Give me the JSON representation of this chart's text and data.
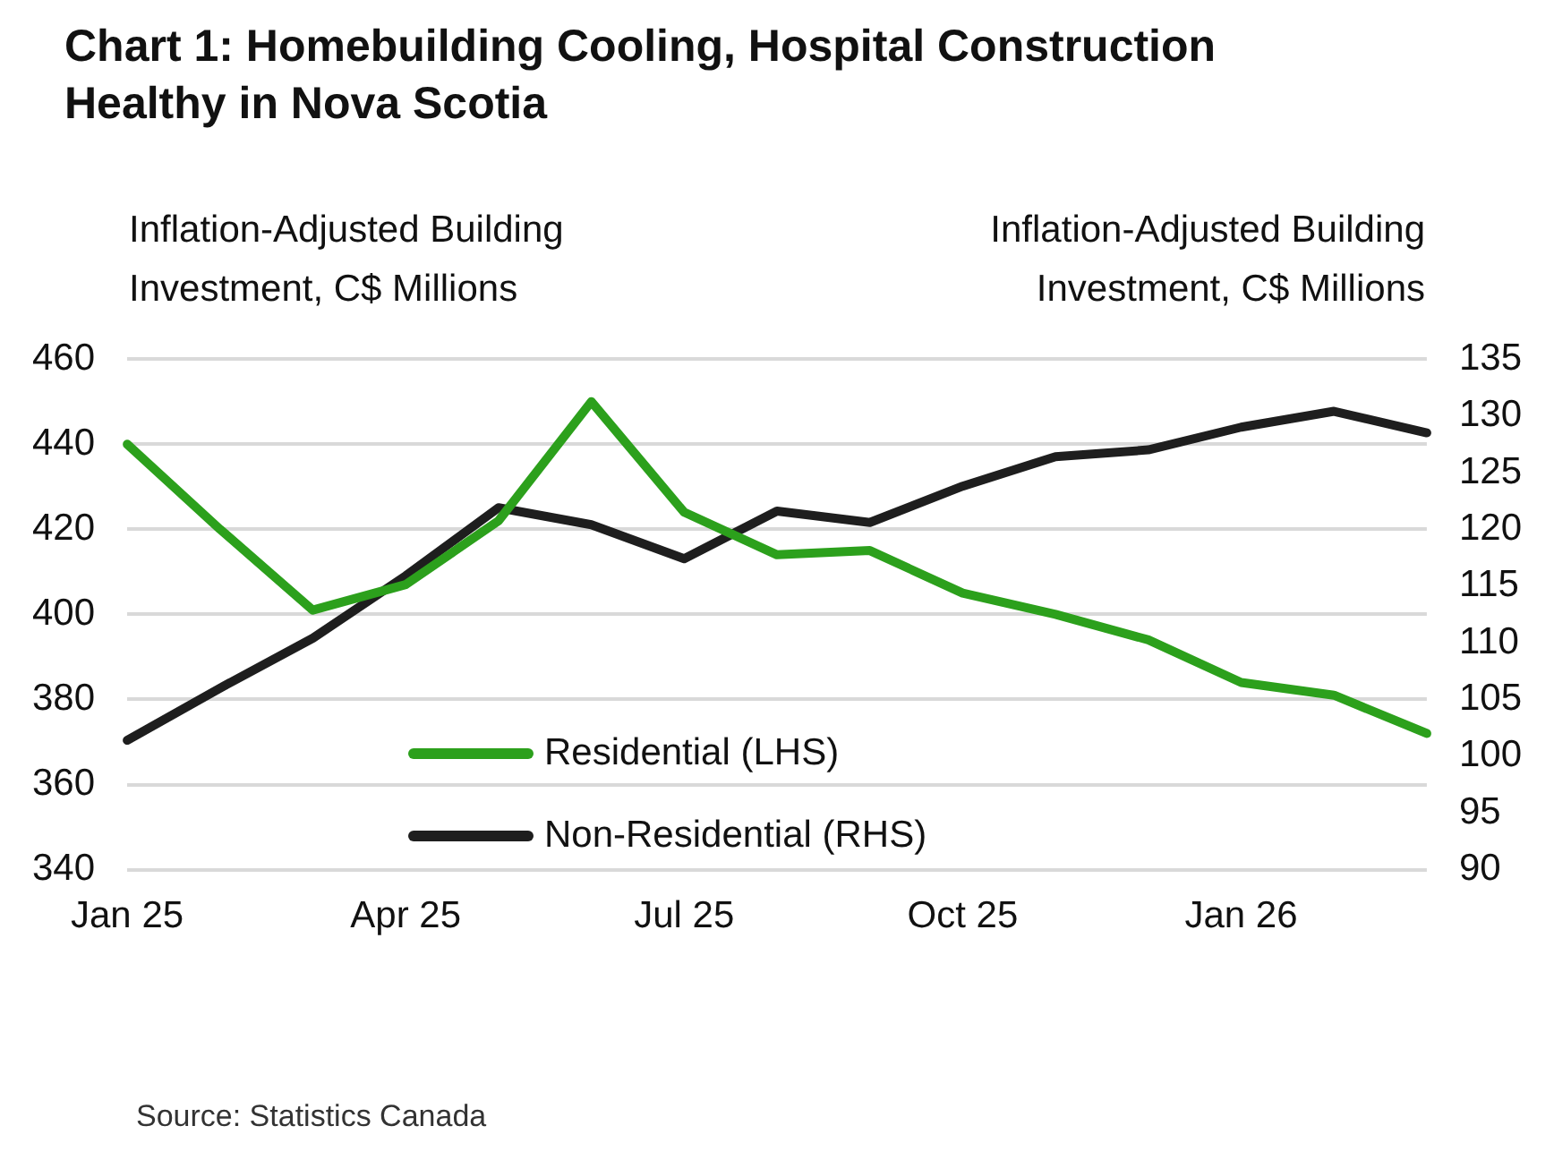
{
  "chart_data": {
    "type": "line",
    "title": "Chart 1: Homebuilding Cooling, Hospital Construction Healthy in Nova Scotia",
    "ylabel": "Inflation-Adjusted Building Investment, C$ Millions",
    "y2label": "Inflation-Adjusted Building Investment, C$ Millions",
    "categories": [
      "Jan 25",
      null,
      null,
      "Apr 25",
      null,
      null,
      "Jul 25",
      null,
      null,
      "Oct 25",
      null,
      null,
      "Jan 26",
      null,
      null
    ],
    "series": [
      {
        "name": "Residential (LHS)",
        "color": "#2ca01c",
        "values": [
          440,
          420,
          401,
          407,
          422,
          450,
          424,
          414,
          415,
          405,
          400,
          394,
          384,
          381,
          372
        ]
      },
      {
        "name": "Non-Residential (RHS)",
        "color": "#1e1e1e",
        "axis": "y2",
        "values": [
          101.4,
          106,
          110.4,
          115.9,
          121.9,
          120.4,
          117.4,
          121.6,
          120.6,
          123.8,
          126.4,
          127,
          129,
          130.4,
          128.5
        ]
      }
    ],
    "ylim": [
      340,
      460
    ],
    "yticks": [
      340,
      360,
      380,
      400,
      420,
      440,
      460
    ],
    "y2lim": [
      90,
      135
    ],
    "y2ticks": [
      90,
      95,
      100,
      105,
      110,
      115,
      120,
      125,
      130,
      135
    ],
    "grid": "y",
    "legend": "bottom",
    "marker": "none",
    "line_style": "solid",
    "annotations": [
      "Source: Statistics Canada"
    ]
  }
}
